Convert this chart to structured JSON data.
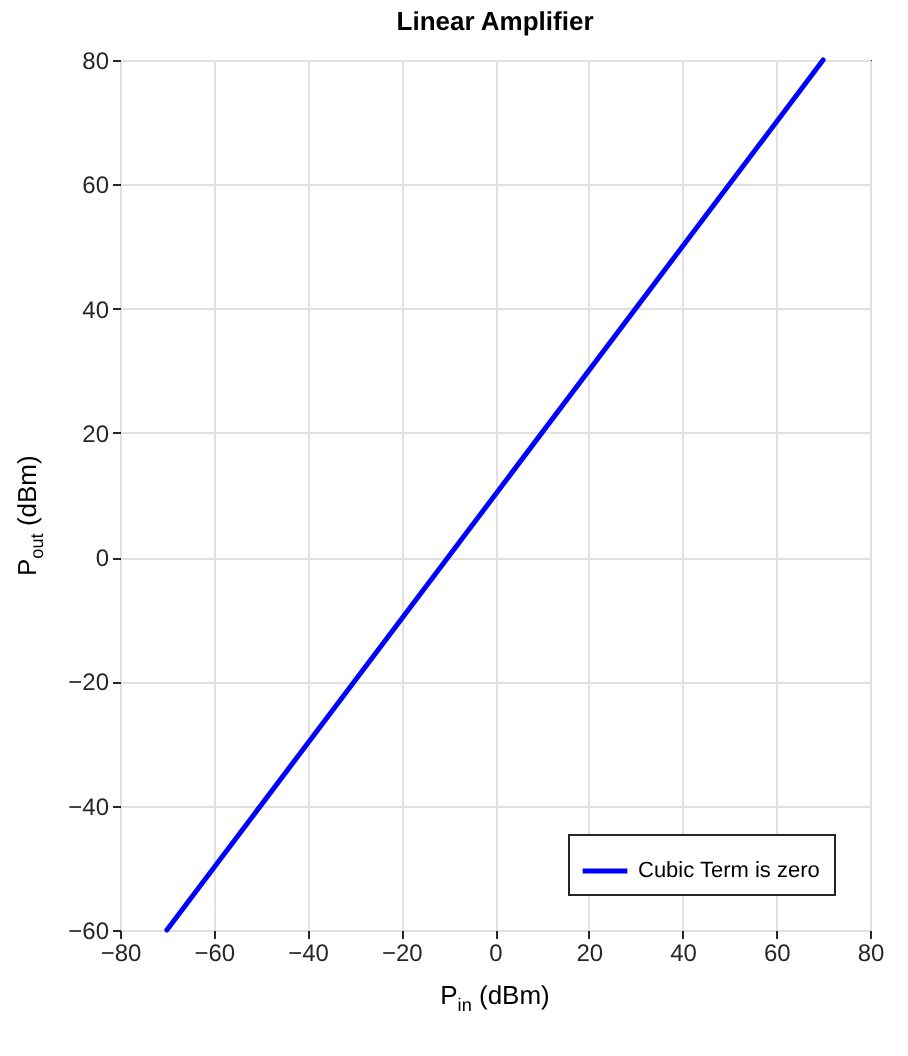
{
  "chart_data": {
    "type": "line",
    "title": "Linear Amplifier",
    "xlabel": "P$_{in}$ (dBm)",
    "ylabel": "P$_{out}$ (dBm)",
    "x": [
      -70,
      70
    ],
    "series": [
      {
        "name": "Cubic Term is zero",
        "color": "#0000ff",
        "values": [
          -60,
          80
        ]
      }
    ],
    "xlim": [
      -80,
      80
    ],
    "xticks": [
      -80,
      -60,
      -40,
      -20,
      0,
      20,
      40,
      60,
      80
    ],
    "ylim": [
      -60,
      80
    ],
    "yticks": [
      -60,
      -40,
      -20,
      0,
      20,
      40,
      60,
      80
    ],
    "grid": true,
    "legend": "bottom right",
    "marker": "none",
    "line_style": "solid"
  }
}
